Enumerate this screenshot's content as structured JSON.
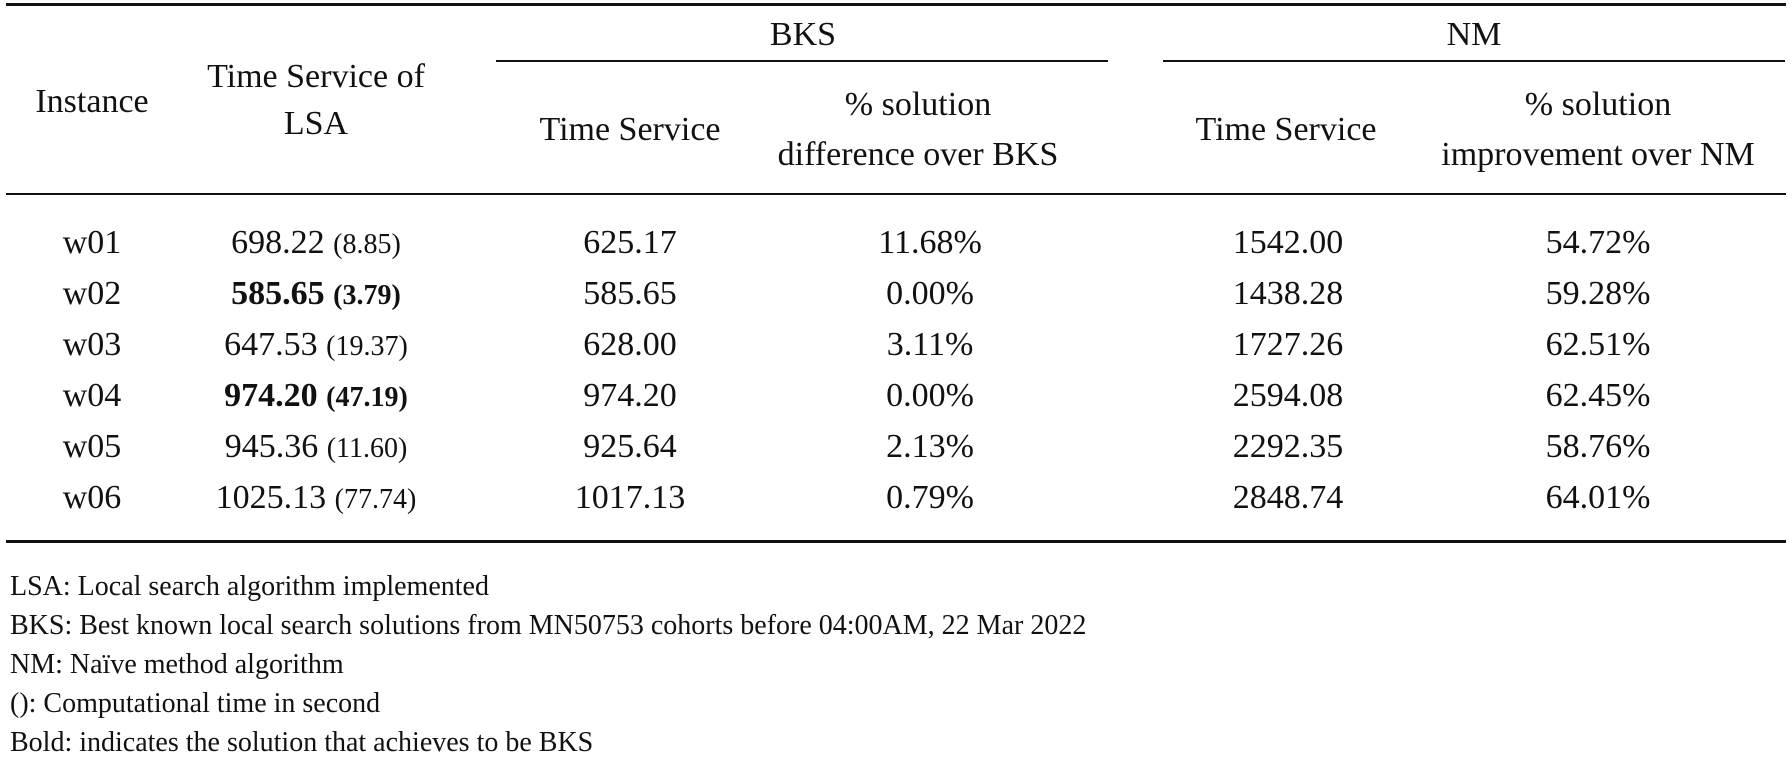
{
  "table": {
    "headers": {
      "instance": "Instance",
      "lsa_line1": "Time Service of",
      "lsa_line2": "LSA",
      "bks_group": "BKS",
      "nm_group": "NM",
      "bks_time": "Time Service",
      "bks_pct_line1": "% solution",
      "bks_pct_line2": "difference over BKS",
      "nm_time": "Time Service",
      "nm_pct_line1": "% solution",
      "nm_pct_line2": "improvement over NM"
    },
    "rows": [
      {
        "instance": "w01",
        "lsa": "698.22",
        "lsa_time": "(8.85)",
        "bold": false,
        "bks_time": "625.17",
        "bks_pct": "11.68%",
        "nm_time": "1542.00",
        "nm_pct": "54.72%"
      },
      {
        "instance": "w02",
        "lsa": "585.65",
        "lsa_time": "(3.79)",
        "bold": true,
        "bks_time": "585.65",
        "bks_pct": "0.00%",
        "nm_time": "1438.28",
        "nm_pct": "59.28%"
      },
      {
        "instance": "w03",
        "lsa": "647.53",
        "lsa_time": "(19.37)",
        "bold": false,
        "bks_time": "628.00",
        "bks_pct": "3.11%",
        "nm_time": "1727.26",
        "nm_pct": "62.51%"
      },
      {
        "instance": "w04",
        "lsa": "974.20",
        "lsa_time": "(47.19)",
        "bold": true,
        "bks_time": "974.20",
        "bks_pct": "0.00%",
        "nm_time": "2594.08",
        "nm_pct": "62.45%"
      },
      {
        "instance": "w05",
        "lsa": "945.36",
        "lsa_time": "(11.60)",
        "bold": false,
        "bks_time": "925.64",
        "bks_pct": "2.13%",
        "nm_time": "2292.35",
        "nm_pct": "58.76%"
      },
      {
        "instance": "w06",
        "lsa": "1025.13",
        "lsa_time": "(77.74)",
        "bold": false,
        "bks_time": "1017.13",
        "bks_pct": "0.79%",
        "nm_time": "2848.74",
        "nm_pct": "64.01%"
      }
    ]
  },
  "notes": [
    "LSA: Local search algorithm implemented",
    "BKS: Best known local search solutions from MN50753 cohorts before 04:00AM, 22 Mar 2022",
    "NM: Naïve method algorithm",
    "(): Computational time in second",
    "Bold: indicates the solution that achieves to be BKS"
  ]
}
